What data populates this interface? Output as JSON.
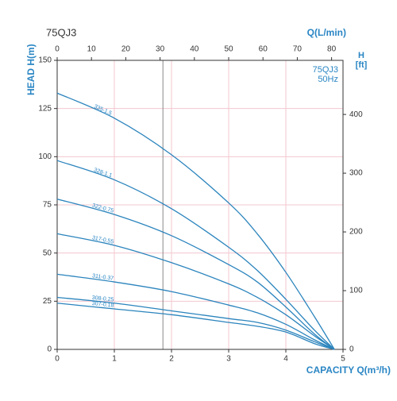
{
  "chart_data": {
    "type": "line",
    "title": "75QJ3",
    "xlabel": "CAPACITY Q(m³/h)",
    "ylabel": "HEAD H(m)",
    "x2label": "Q(L/min)",
    "y2label": [
      "H",
      "[ft]"
    ],
    "annotations": [
      "75QJ3",
      "50Hz"
    ],
    "x": [
      0,
      1,
      2,
      3,
      3.5,
      4,
      4.5,
      4.85
    ],
    "xlim": [
      0,
      5
    ],
    "xticks": [
      0,
      1,
      2,
      3,
      4,
      5
    ],
    "ylim": [
      0,
      150
    ],
    "yticks": [
      0,
      25,
      50,
      75,
      100,
      125,
      150
    ],
    "x2lim": [
      0,
      83.33
    ],
    "x2ticks": [
      0,
      10,
      20,
      30,
      40,
      50,
      60,
      70,
      80
    ],
    "y2lim": [
      0,
      492.1
    ],
    "y2ticks": [
      0,
      100,
      200,
      300,
      400
    ],
    "reference_x": 1.85,
    "grid": true,
    "series": [
      {
        "name": "335-1.5",
        "color": "#2b84bd",
        "values": [
          133,
          120,
          101,
          76,
          60,
          40,
          17,
          0
        ]
      },
      {
        "name": "328-1.1",
        "color": "#2b84bd",
        "values": [
          98,
          88,
          73,
          53,
          41,
          26,
          10,
          0
        ]
      },
      {
        "name": "322-0.75",
        "color": "#2b84bd",
        "values": [
          78,
          70,
          59,
          44,
          35,
          22,
          8,
          0
        ]
      },
      {
        "name": "317-0.55",
        "color": "#2b84bd",
        "values": [
          60,
          54,
          45,
          34,
          27,
          18,
          7,
          0
        ]
      },
      {
        "name": "311-0.37",
        "color": "#2b84bd",
        "values": [
          39,
          35,
          30,
          23,
          19,
          13,
          5,
          0
        ]
      },
      {
        "name": "308-0.25",
        "color": "#2b84bd",
        "values": [
          27,
          24,
          20,
          16,
          14,
          10,
          4,
          0
        ]
      },
      {
        "name": "307-0.18",
        "color": "#2b84bd",
        "values": [
          24,
          21,
          18,
          14,
          12,
          9,
          3,
          0
        ]
      }
    ]
  }
}
